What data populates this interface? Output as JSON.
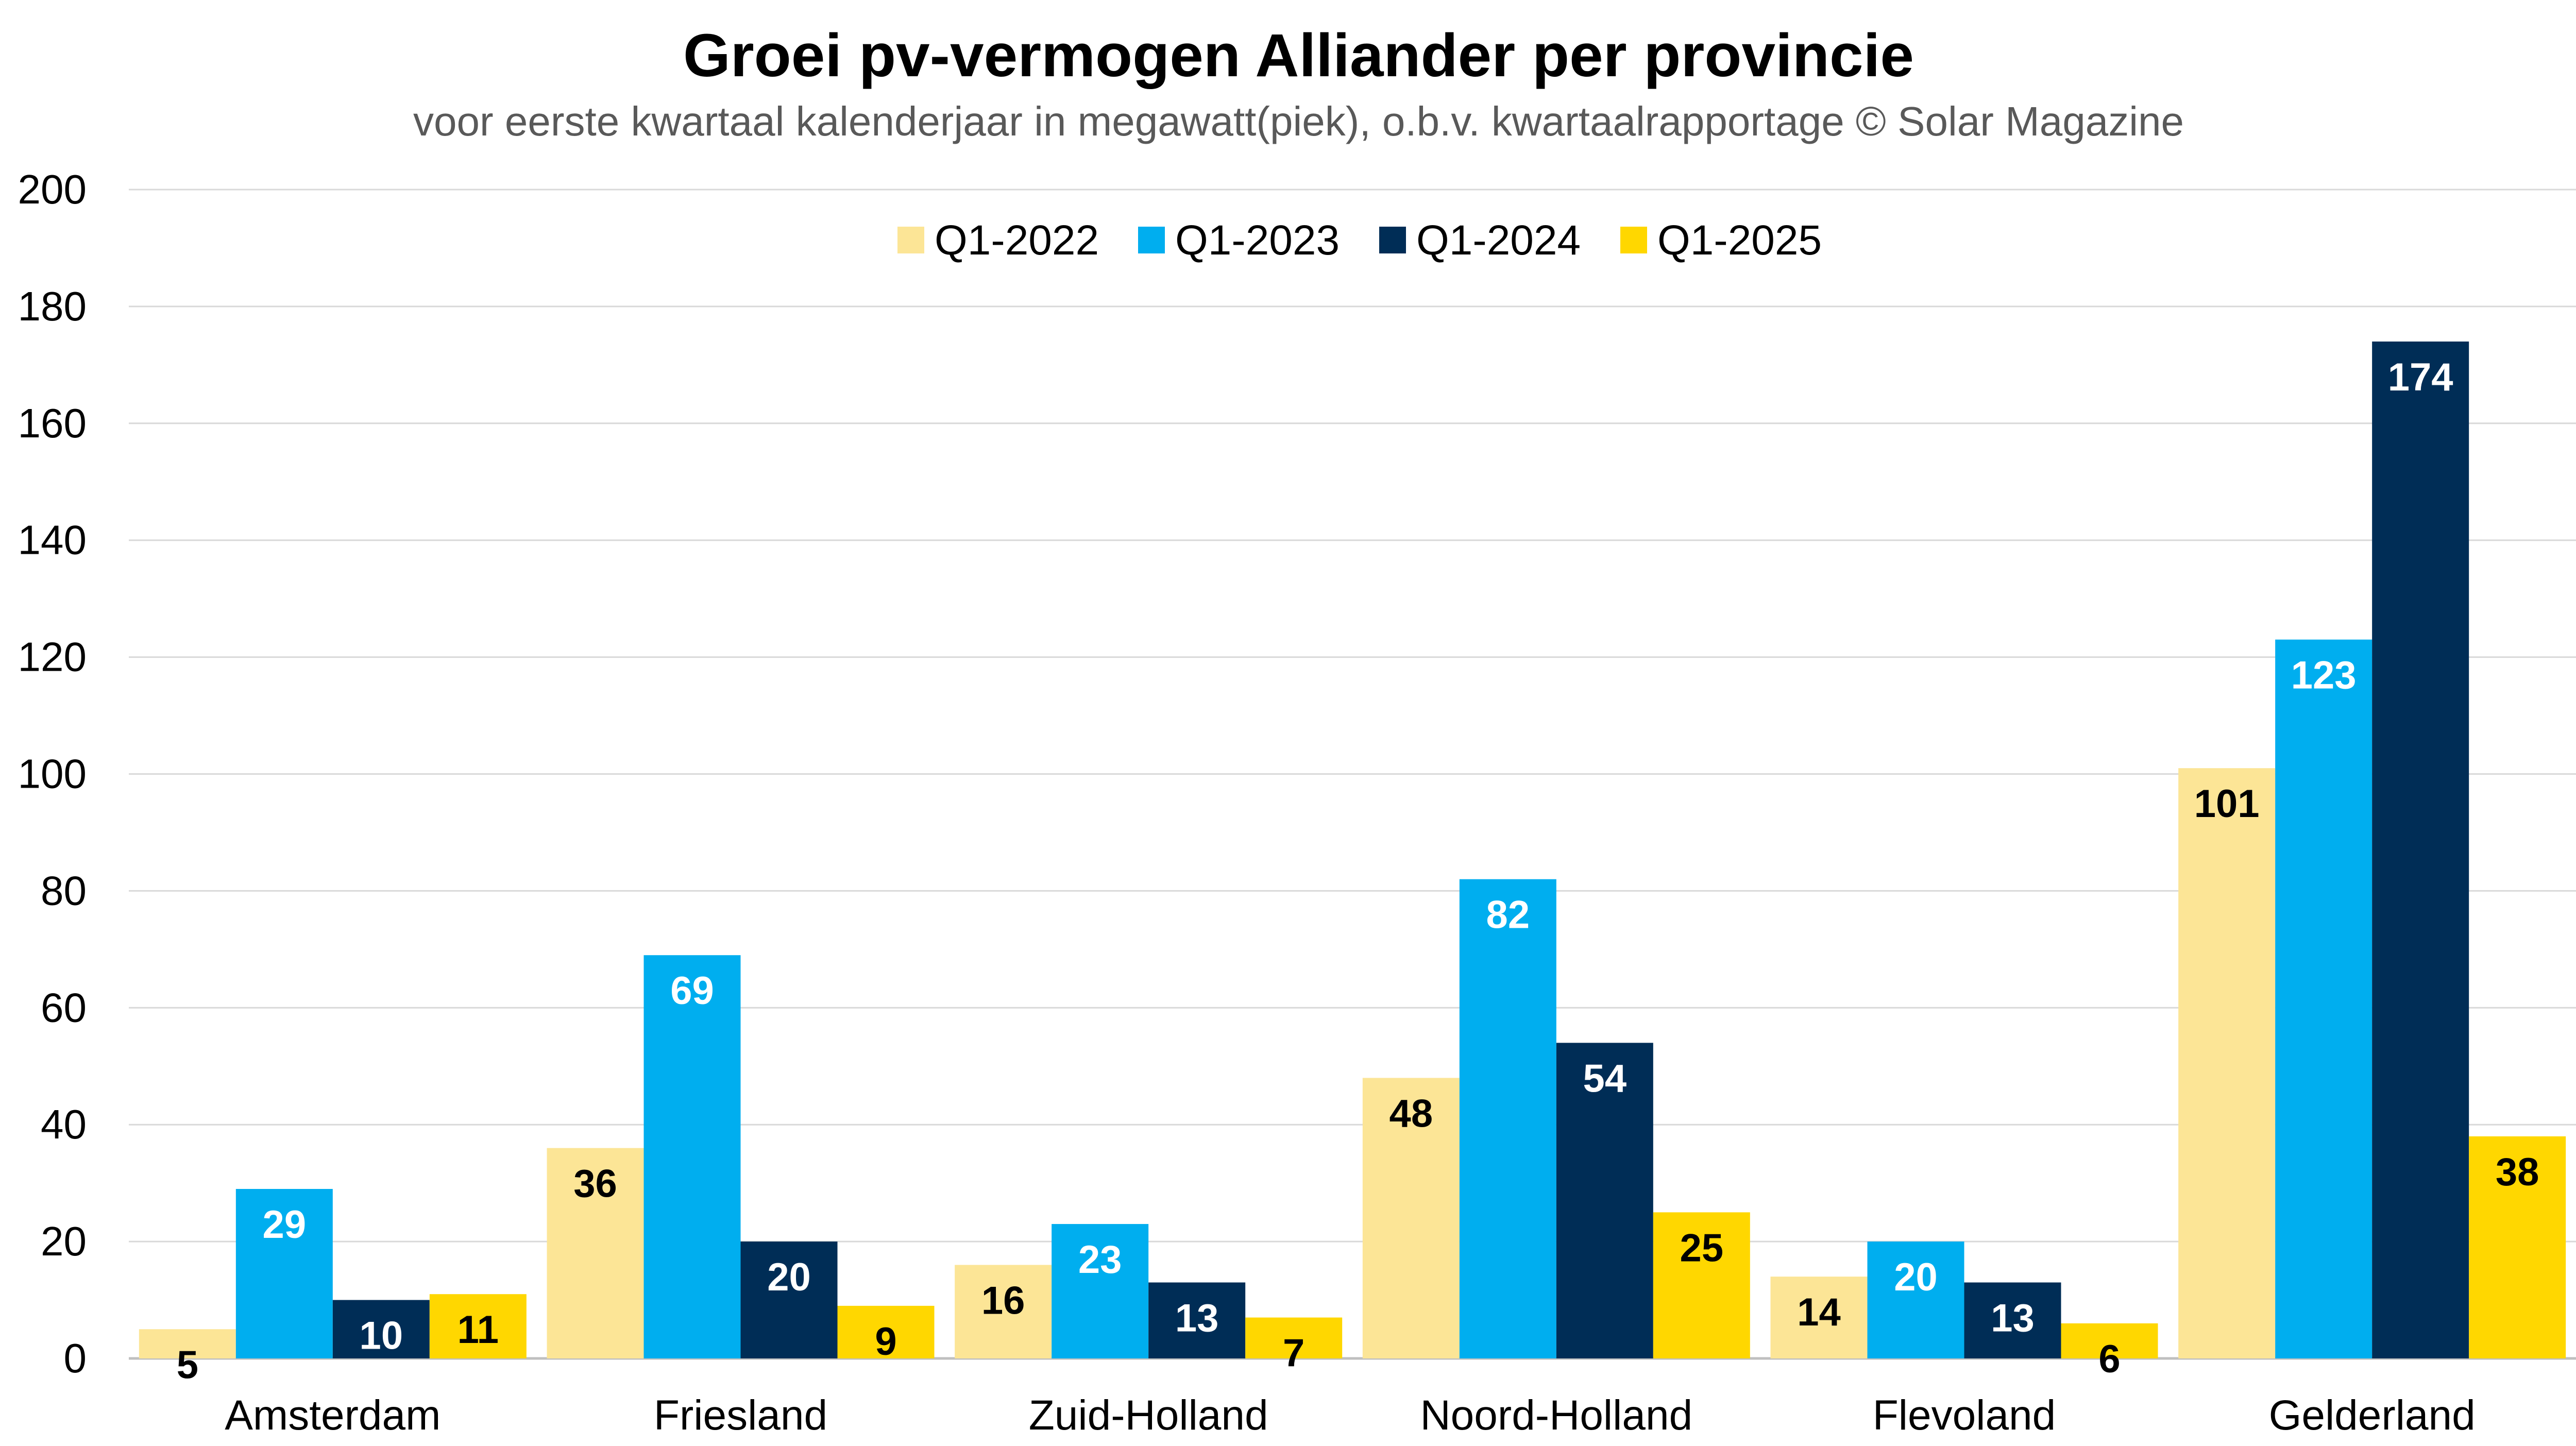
{
  "chart_data": {
    "type": "bar",
    "title": "Groei pv-vermogen Alliander per provincie",
    "subtitle": "voor eerste kwartaal kalenderjaar in megawatt(piek), o.b.v. kwartaalrapportage © Solar Magazine",
    "categories": [
      "Amsterdam",
      "Friesland",
      "Zuid-Holland",
      "Noord-Holland",
      "Flevoland",
      "Gelderland"
    ],
    "series": [
      {
        "name": "Q1-2022",
        "color": "#FCE596",
        "label_color": "#000000",
        "values": [
          5,
          36,
          16,
          48,
          14,
          101
        ]
      },
      {
        "name": "Q1-2023",
        "color": "#00AEEF",
        "label_color": "#FFFFFF",
        "values": [
          29,
          69,
          23,
          82,
          20,
          123
        ]
      },
      {
        "name": "Q1-2024",
        "color": "#002D56",
        "label_color": "#FFFFFF",
        "values": [
          10,
          20,
          13,
          54,
          13,
          174
        ]
      },
      {
        "name": "Q1-2025",
        "color": "#FFD700",
        "label_color": "#000000",
        "values": [
          11,
          9,
          7,
          25,
          6,
          38
        ]
      }
    ],
    "ylim": [
      0,
      200
    ],
    "yticks": [
      0,
      20,
      40,
      60,
      80,
      100,
      120,
      140,
      160,
      180,
      200
    ],
    "grid": true,
    "legend": "top-center",
    "xlabel": "",
    "ylabel": ""
  }
}
